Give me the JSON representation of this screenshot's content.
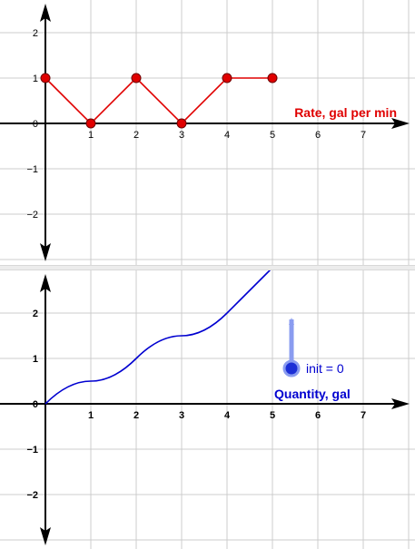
{
  "colors": {
    "rate": "#e00000",
    "quantity": "#0000d0",
    "grid": "#cccccc",
    "axis": "#000000",
    "slider": "#8a9cf0"
  },
  "chart_data": [
    {
      "type": "line",
      "title": "",
      "series": [
        {
          "name": "Rate, gal per min",
          "x": [
            0,
            1,
            2,
            3,
            4,
            5
          ],
          "y": [
            1,
            0,
            1,
            0,
            1,
            1
          ],
          "markers": true
        }
      ],
      "xlim": [
        -1,
        8
      ],
      "ylim": [
        -3,
        3
      ],
      "x_ticks": [
        "1",
        "2",
        "3",
        "4",
        "5",
        "6",
        "7"
      ],
      "y_ticks": [
        "2",
        "1",
        "0",
        "−1",
        "−2"
      ],
      "grid": true
    },
    {
      "type": "line",
      "title": "",
      "series": [
        {
          "name": "Quantity, gal",
          "x": [
            0,
            1,
            2,
            3,
            4,
            4.5,
            5.3
          ],
          "y": [
            0,
            0.5,
            1,
            1.5,
            2,
            2.5,
            3.3
          ]
        }
      ],
      "xlim": [
        -1,
        8
      ],
      "ylim": [
        -3,
        3
      ],
      "x_ticks": [
        "1",
        "2",
        "3",
        "4",
        "5",
        "6",
        "7"
      ],
      "y_ticks": [
        "2",
        "1",
        "0",
        "−1",
        "−2"
      ],
      "grid": true,
      "slider": {
        "label": "init = 0",
        "value": 0
      }
    }
  ]
}
